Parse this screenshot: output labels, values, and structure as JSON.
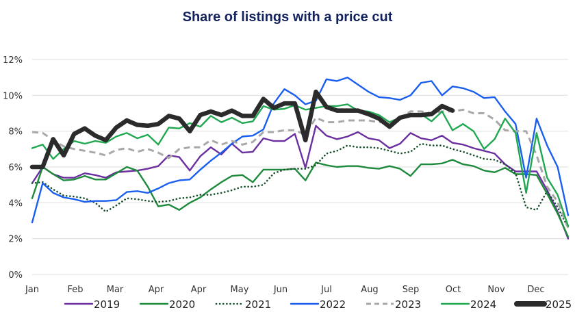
{
  "chart_data": {
    "type": "line",
    "title": "Share of listings with a price cut",
    "xlabel": "",
    "ylabel": "",
    "ylim": [
      0,
      12
    ],
    "yticks": [
      "0%",
      "2%",
      "4%",
      "6%",
      "8%",
      "10%",
      "12%"
    ],
    "xtick_labels": [
      "Jan",
      "Feb",
      "Mar",
      "Apr",
      "Apr",
      "May",
      "Jun",
      "Jul",
      "Aug",
      "Sep",
      "Oct",
      "Nov",
      "Dec"
    ],
    "grid": true,
    "legend": "bottom",
    "series": [
      {
        "name": "2019",
        "color": "#6b2fa0",
        "style": "solid",
        "values": [
          5.1,
          6.0,
          5.6,
          5.4,
          5.4,
          5.65,
          5.55,
          5.4,
          5.7,
          5.75,
          5.8,
          5.9,
          6.05,
          6.65,
          6.55,
          5.8,
          6.6,
          7.1,
          6.7,
          7.3,
          6.8,
          6.85,
          7.6,
          7.45,
          7.45,
          7.85,
          5.95,
          8.3,
          7.75,
          7.55,
          7.7,
          7.95,
          7.6,
          7.5,
          7.05,
          7.3,
          7.9,
          7.6,
          7.5,
          7.75,
          7.35,
          7.25,
          7.05,
          6.9,
          6.75,
          6.15,
          5.75,
          5.75,
          5.75,
          4.7,
          3.5,
          2.0
        ]
      },
      {
        "name": "2020",
        "color": "#1e8a3c",
        "style": "solid",
        "values": [
          4.25,
          6.0,
          5.6,
          5.25,
          5.3,
          5.5,
          5.3,
          5.3,
          5.65,
          6.0,
          5.8,
          4.9,
          3.8,
          3.9,
          3.6,
          4.0,
          4.3,
          4.75,
          5.15,
          5.5,
          5.55,
          5.15,
          5.85,
          5.85,
          5.85,
          5.9,
          5.25,
          6.25,
          6.1,
          6.0,
          6.05,
          6.05,
          5.95,
          5.9,
          6.05,
          5.9,
          5.5,
          6.15,
          6.15,
          6.2,
          6.4,
          6.15,
          6.05,
          5.8,
          5.7,
          5.95,
          5.6,
          5.6,
          5.55,
          4.5,
          3.4,
          2.1
        ]
      },
      {
        "name": "2021",
        "color": "#17502a",
        "style": "dotted",
        "values": [
          5.1,
          5.15,
          4.75,
          4.4,
          4.35,
          4.25,
          4.0,
          3.5,
          3.85,
          4.25,
          4.2,
          4.1,
          4.05,
          4.1,
          4.25,
          4.3,
          4.45,
          4.45,
          4.55,
          4.7,
          4.9,
          4.9,
          5.0,
          5.65,
          5.85,
          5.9,
          5.9,
          6.1,
          6.75,
          6.9,
          7.2,
          7.1,
          7.1,
          7.05,
          6.9,
          6.75,
          6.85,
          7.3,
          7.2,
          7.2,
          7.0,
          6.85,
          6.65,
          6.45,
          6.4,
          6.15,
          5.65,
          3.75,
          3.6,
          4.65,
          3.75,
          2.6
        ]
      },
      {
        "name": "2022",
        "color": "#1a5ef0",
        "style": "solid",
        "values": [
          2.9,
          5.1,
          4.55,
          4.3,
          4.2,
          4.05,
          4.1,
          4.1,
          4.15,
          4.6,
          4.65,
          4.55,
          4.8,
          5.1,
          5.25,
          5.3,
          5.85,
          6.35,
          6.8,
          7.3,
          7.7,
          7.75,
          8.1,
          9.55,
          10.35,
          10.0,
          9.5,
          9.7,
          10.9,
          10.8,
          11.0,
          10.6,
          10.2,
          9.9,
          9.85,
          9.75,
          10.0,
          10.7,
          10.8,
          10.0,
          10.5,
          10.4,
          10.2,
          9.85,
          9.9,
          9.1,
          8.4,
          5.4,
          8.7,
          7.2,
          6.0,
          3.3
        ]
      },
      {
        "name": "2023",
        "color": "#a8a8a8",
        "style": "dashed",
        "values": [
          7.95,
          7.9,
          7.5,
          7.15,
          7.0,
          6.9,
          6.8,
          6.65,
          6.95,
          7.05,
          6.85,
          7.0,
          6.8,
          6.5,
          7.0,
          7.1,
          7.1,
          7.5,
          7.25,
          7.45,
          7.25,
          7.4,
          7.95,
          7.95,
          8.05,
          8.05,
          7.8,
          8.75,
          8.5,
          8.5,
          8.6,
          8.6,
          8.6,
          8.5,
          8.5,
          8.75,
          9.1,
          9.1,
          9.0,
          9.1,
          9.1,
          9.2,
          9.0,
          9.0,
          8.65,
          8.05,
          8.0,
          8.0,
          6.65,
          4.9,
          4.05,
          2.6
        ]
      },
      {
        "name": "2024",
        "color": "#1fa850",
        "style": "solid",
        "values": [
          7.05,
          7.25,
          6.45,
          7.0,
          7.45,
          7.3,
          7.45,
          7.35,
          7.7,
          7.9,
          7.6,
          7.8,
          7.25,
          8.2,
          8.15,
          8.45,
          8.25,
          8.85,
          8.5,
          8.75,
          8.45,
          8.55,
          9.4,
          9.2,
          9.25,
          9.45,
          9.2,
          9.3,
          9.4,
          9.4,
          9.5,
          9.15,
          9.1,
          8.9,
          8.5,
          8.75,
          8.85,
          8.95,
          8.55,
          9.1,
          8.05,
          8.4,
          8.0,
          7.0,
          7.55,
          8.7,
          7.9,
          4.55,
          7.9,
          5.4,
          4.45,
          2.7
        ]
      },
      {
        "name": "2025",
        "color": "#2b2b2b",
        "style": "thick",
        "values": [
          6.0,
          6.0,
          7.55,
          6.65,
          7.85,
          8.15,
          7.75,
          7.5,
          8.2,
          8.6,
          8.35,
          8.3,
          8.4,
          8.85,
          8.7,
          8.0,
          8.9,
          9.1,
          8.9,
          9.15,
          8.85,
          8.85,
          9.8,
          9.3,
          9.55,
          9.55,
          7.5,
          10.2,
          9.35,
          9.15,
          9.15,
          9.15,
          8.95,
          8.7,
          8.25,
          8.75,
          8.9,
          8.9,
          8.95,
          9.4,
          9.15
        ]
      }
    ]
  }
}
